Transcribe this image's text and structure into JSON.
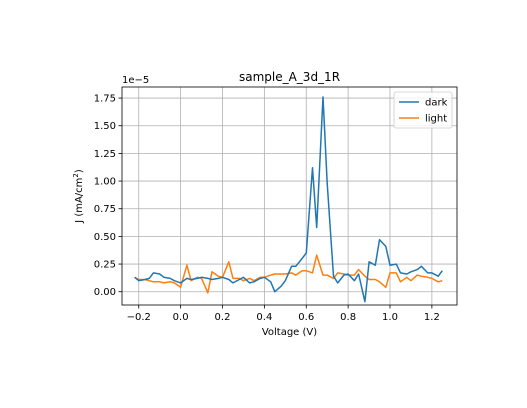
{
  "chart_data": {
    "type": "line",
    "title": "sample_A_3d_1R",
    "xlabel": "Voltage (V)",
    "ylabel_base": "J (mA/cm",
    "ylabel_sup": "2",
    "ylabel_end": ")",
    "y_offset_text": "1e−5",
    "xlim": [
      -0.28,
      1.32
    ],
    "ylim": [
      -0.12,
      1.85
    ],
    "y_multiplier": 1e-05,
    "x_ticks": [
      -0.2,
      0.0,
      0.2,
      0.4,
      0.6,
      0.8,
      1.0,
      1.2
    ],
    "x_tick_labels": [
      "−0.2",
      "0.0",
      "0.2",
      "0.4",
      "0.6",
      "0.8",
      "1.0",
      "1.2"
    ],
    "y_ticks": [
      0.0,
      0.25,
      0.5,
      0.75,
      1.0,
      1.25,
      1.5,
      1.75
    ],
    "y_tick_labels": [
      "0.00",
      "0.25",
      "0.50",
      "0.75",
      "1.00",
      "1.25",
      "1.50",
      "1.75"
    ],
    "grid": true,
    "legend_position": "upper-right",
    "series": [
      {
        "name": "dark",
        "color": "#1f77b4",
        "x": [
          -0.22,
          -0.2,
          -0.17,
          -0.15,
          -0.13,
          -0.1,
          -0.08,
          -0.05,
          -0.03,
          0.0,
          0.03,
          0.05,
          0.08,
          0.1,
          0.13,
          0.15,
          0.18,
          0.2,
          0.23,
          0.25,
          0.28,
          0.3,
          0.33,
          0.35,
          0.38,
          0.4,
          0.43,
          0.45,
          0.48,
          0.5,
          0.53,
          0.55,
          0.58,
          0.6,
          0.63,
          0.65,
          0.68,
          0.7,
          0.73,
          0.75,
          0.78,
          0.8,
          0.83,
          0.85,
          0.88,
          0.9,
          0.93,
          0.95,
          0.98,
          1.0,
          1.03,
          1.05,
          1.08,
          1.1,
          1.13,
          1.15,
          1.18,
          1.2,
          1.23,
          1.25
        ],
        "y": [
          0.13,
          0.1,
          0.11,
          0.12,
          0.17,
          0.16,
          0.13,
          0.12,
          0.1,
          0.08,
          0.12,
          0.11,
          0.12,
          0.13,
          0.12,
          0.11,
          0.12,
          0.13,
          0.11,
          0.08,
          0.11,
          0.13,
          0.08,
          0.09,
          0.12,
          0.13,
          0.09,
          0.0,
          0.05,
          0.1,
          0.23,
          0.23,
          0.3,
          0.35,
          1.12,
          0.58,
          1.76,
          0.98,
          0.14,
          0.08,
          0.15,
          0.16,
          0.1,
          0.16,
          -0.09,
          0.27,
          0.24,
          0.47,
          0.41,
          0.24,
          0.25,
          0.17,
          0.16,
          0.18,
          0.2,
          0.23,
          0.17,
          0.17,
          0.14,
          0.19
        ]
      },
      {
        "name": "light",
        "color": "#ff7f0e",
        "x": [
          -0.22,
          -0.2,
          -0.17,
          -0.15,
          -0.13,
          -0.1,
          -0.08,
          -0.05,
          -0.03,
          0.0,
          0.03,
          0.05,
          0.08,
          0.1,
          0.13,
          0.15,
          0.18,
          0.2,
          0.23,
          0.25,
          0.28,
          0.3,
          0.33,
          0.35,
          0.38,
          0.4,
          0.43,
          0.45,
          0.48,
          0.5,
          0.53,
          0.55,
          0.58,
          0.6,
          0.63,
          0.65,
          0.68,
          0.7,
          0.73,
          0.75,
          0.78,
          0.8,
          0.83,
          0.85,
          0.88,
          0.9,
          0.93,
          0.95,
          0.98,
          1.0,
          1.03,
          1.05,
          1.08,
          1.1,
          1.13,
          1.15,
          1.18,
          1.2,
          1.23,
          1.25
        ],
        "y": [
          0.13,
          0.11,
          0.11,
          0.1,
          0.09,
          0.09,
          0.08,
          0.09,
          0.08,
          0.04,
          0.24,
          0.1,
          0.13,
          0.12,
          -0.01,
          0.18,
          0.14,
          0.13,
          0.27,
          0.12,
          0.12,
          0.1,
          0.12,
          0.1,
          0.13,
          0.13,
          0.15,
          0.16,
          0.16,
          0.16,
          0.17,
          0.15,
          0.19,
          0.19,
          0.17,
          0.33,
          0.15,
          0.15,
          0.12,
          0.17,
          0.16,
          0.15,
          0.15,
          0.2,
          0.14,
          0.11,
          0.11,
          0.09,
          0.04,
          0.17,
          0.17,
          0.09,
          0.13,
          0.1,
          0.15,
          0.14,
          0.13,
          0.12,
          0.09,
          0.1
        ]
      }
    ]
  }
}
